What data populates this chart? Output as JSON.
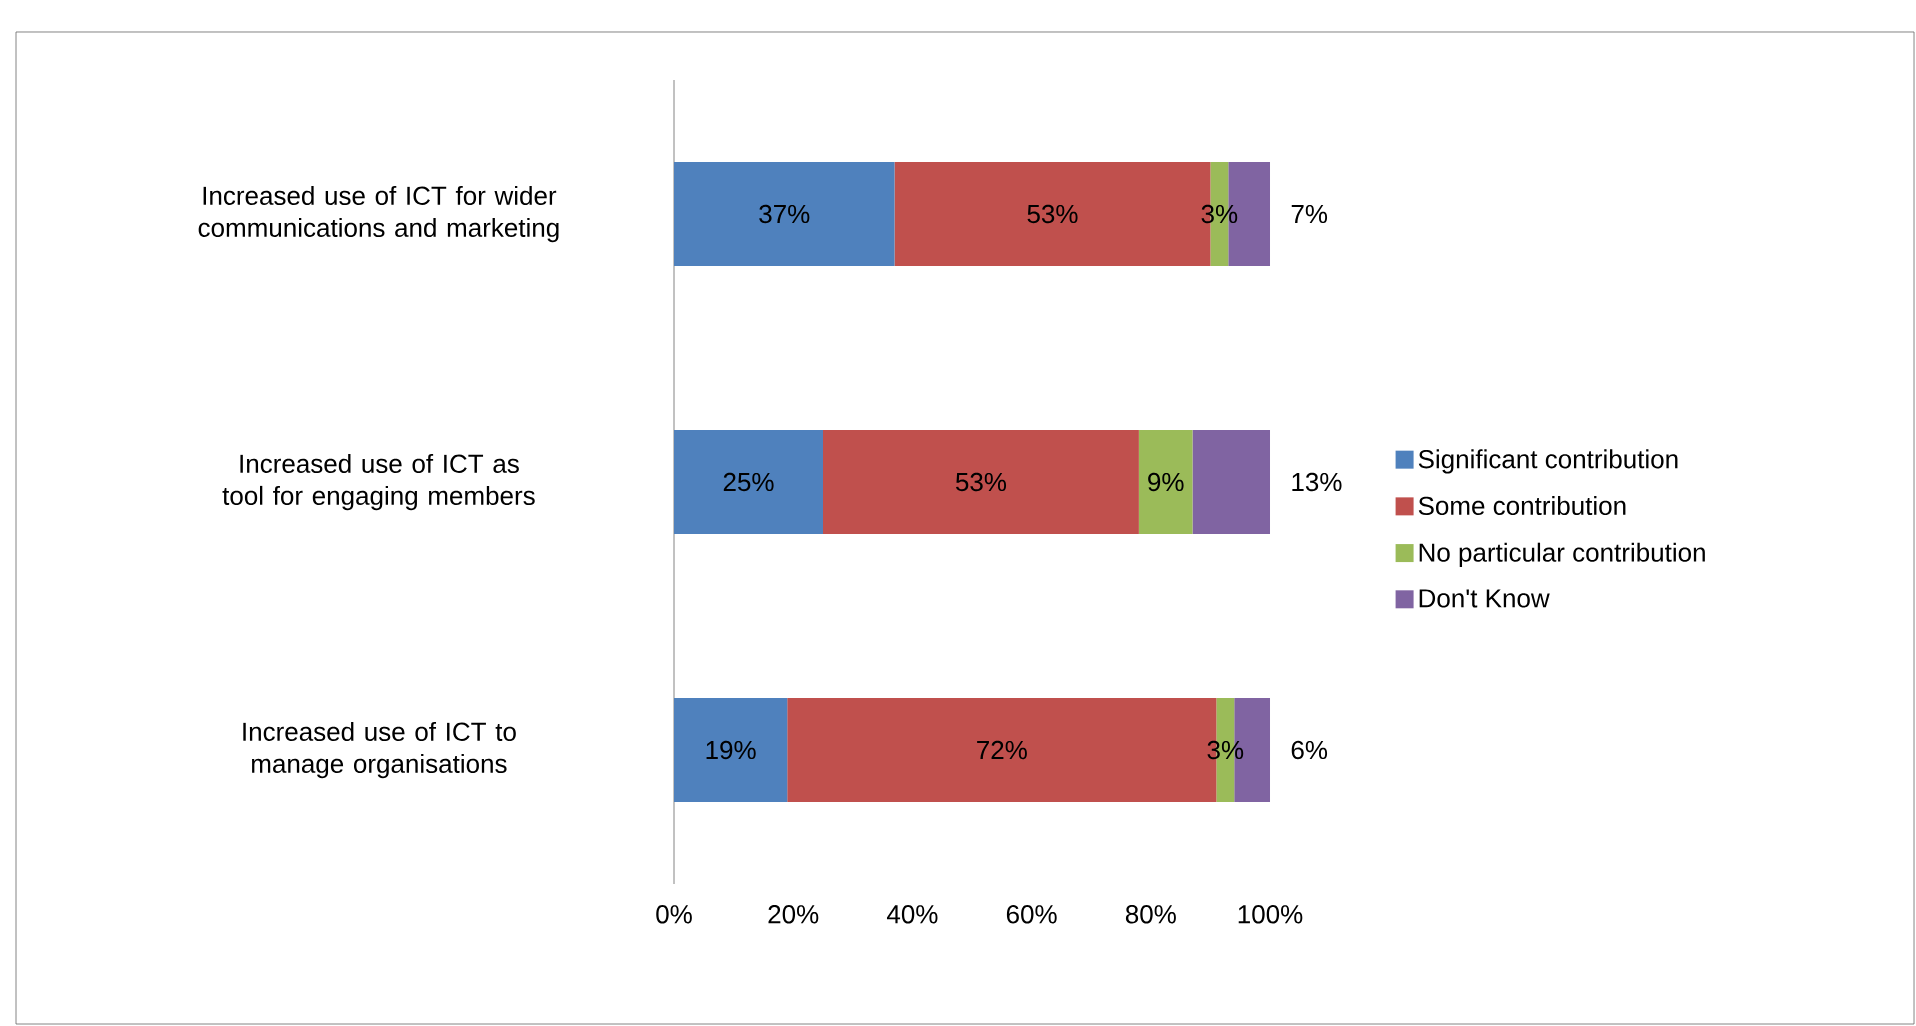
{
  "chart_data": {
    "type": "bar",
    "orientation": "horizontal",
    "stacked": true,
    "categories": [
      "Increased use of ICT for wider communications and marketing",
      "Increased use of ICT as tool for engaging members",
      "Increased use of ICT to manage organisations"
    ],
    "series": [
      {
        "name": "Significant contribution",
        "color": "#4f81bd",
        "values": [
          37,
          25,
          19
        ],
        "value_labels": [
          "37%",
          "25%",
          "19%"
        ]
      },
      {
        "name": "Some contribution",
        "color": "#c0504d",
        "values": [
          53,
          53,
          72
        ],
        "value_labels": [
          "53%",
          "53%",
          "72%"
        ]
      },
      {
        "name": "No particular contribution",
        "color": "#9bbb59",
        "values": [
          3,
          9,
          3
        ],
        "value_labels": [
          "3%",
          "9%",
          "3%"
        ]
      },
      {
        "name": "Don't Know",
        "color": "#8064a2",
        "values": [
          7,
          13,
          6
        ],
        "value_labels": [
          "7%",
          "13%",
          "6%"
        ]
      }
    ],
    "xlim": [
      0,
      100
    ],
    "xticks": [
      {
        "value": 0,
        "label": "0%"
      },
      {
        "value": 20,
        "label": "20%"
      },
      {
        "value": 40,
        "label": "40%"
      },
      {
        "value": 60,
        "label": "60%"
      },
      {
        "value": 80,
        "label": "80%"
      },
      {
        "value": 100,
        "label": "100%"
      }
    ],
    "grid": false,
    "legend": "right"
  }
}
